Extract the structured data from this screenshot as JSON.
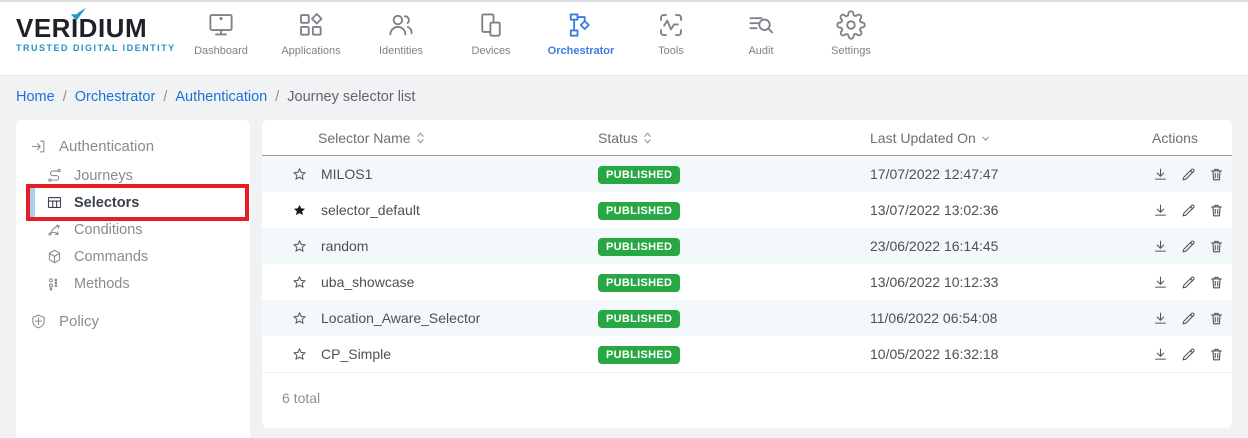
{
  "brand": {
    "name": "VERIDIUM",
    "tagline": "TRUSTED DIGITAL IDENTITY",
    "check_color": "#2398c9",
    "tagline_color": "#2095c4"
  },
  "nav": {
    "active_color": "#3d7de0",
    "items": [
      {
        "label": "Dashboard",
        "icon": "dashboard",
        "active": false
      },
      {
        "label": "Applications",
        "icon": "applications",
        "active": false
      },
      {
        "label": "Identities",
        "icon": "identities",
        "active": false
      },
      {
        "label": "Devices",
        "icon": "devices",
        "active": false
      },
      {
        "label": "Orchestrator",
        "icon": "orchestrator",
        "active": true
      },
      {
        "label": "Tools",
        "icon": "tools",
        "active": false
      },
      {
        "label": "Audit",
        "icon": "audit",
        "active": false
      },
      {
        "label": "Settings",
        "icon": "settings",
        "active": false
      }
    ]
  },
  "breadcrumb": {
    "separator": "/",
    "items": [
      {
        "label": "Home",
        "link": true
      },
      {
        "label": "Orchestrator",
        "link": true
      },
      {
        "label": "Authentication",
        "link": true
      },
      {
        "label": "Journey selector list",
        "link": false
      }
    ]
  },
  "sidebar": {
    "annotation_color": "#e31e24",
    "sections": [
      {
        "label": "Authentication",
        "icon": "login",
        "children": [
          {
            "label": "Journeys",
            "icon": "journeys",
            "selected": false,
            "annotated": false
          },
          {
            "label": "Selectors",
            "icon": "selectors",
            "selected": true,
            "annotated": true
          },
          {
            "label": "Conditions",
            "icon": "conditions",
            "selected": false,
            "annotated": false
          },
          {
            "label": "Commands",
            "icon": "commands",
            "selected": false,
            "annotated": false
          },
          {
            "label": "Methods",
            "icon": "methods",
            "selected": false,
            "annotated": false
          }
        ]
      },
      {
        "label": "Policy",
        "icon": "policy",
        "children": []
      }
    ]
  },
  "table": {
    "status_color": "#28a745",
    "columns": [
      {
        "label": "Selector Name",
        "sort": "both"
      },
      {
        "label": "Status",
        "sort": "both"
      },
      {
        "label": "Last Updated On",
        "sort": "desc"
      },
      {
        "label": "Actions",
        "sort": "none"
      }
    ],
    "row_actions": [
      "download",
      "edit",
      "delete"
    ],
    "rows": [
      {
        "starred": false,
        "name": "MILOS1",
        "status": "PUBLISHED",
        "updated": "17/07/2022 12:47:47"
      },
      {
        "starred": true,
        "name": "selector_default",
        "status": "PUBLISHED",
        "updated": "13/07/2022 13:02:36"
      },
      {
        "starred": false,
        "name": "random",
        "status": "PUBLISHED",
        "updated": "23/06/2022 16:14:45"
      },
      {
        "starred": false,
        "name": "uba_showcase",
        "status": "PUBLISHED",
        "updated": "13/06/2022 10:12:33"
      },
      {
        "starred": false,
        "name": "Location_Aware_Selector",
        "status": "PUBLISHED",
        "updated": "11/06/2022 06:54:08"
      },
      {
        "starred": false,
        "name": "CP_Simple",
        "status": "PUBLISHED",
        "updated": "10/05/2022 16:32:18"
      }
    ],
    "footer_total": "6 total"
  }
}
